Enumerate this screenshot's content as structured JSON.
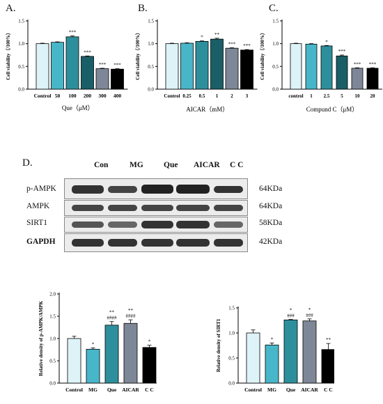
{
  "panel_labels": {
    "a": "A.",
    "b": "B.",
    "c": "C.",
    "d": "D."
  },
  "western_blot": {
    "lanes": [
      "Con",
      "MG",
      "Que",
      "AICAR",
      "C C"
    ],
    "rows": [
      {
        "label": "p-AMPK",
        "kda": "64KDa",
        "bold": false
      },
      {
        "label": "AMPK",
        "kda": "64KDa",
        "bold": false
      },
      {
        "label": "SIRT1",
        "kda": "58KDa",
        "bold": false
      },
      {
        "label": "GAPDH",
        "kda": "42KDa",
        "bold": true
      }
    ]
  },
  "colors": {
    "light_blue": "#ddf3f8",
    "teal": "#48b6c9",
    "mid_teal": "#2e8f9c",
    "dark_teal": "#1a5f67",
    "slate": "#7e8797",
    "black": "#000000"
  },
  "chart_data": [
    {
      "type": "bar",
      "ylabel": "Cell viability（/100%）",
      "xlabel": "Que（μM）",
      "categories": [
        "Control",
        "50",
        "100",
        "200",
        "300",
        "400"
      ],
      "values": [
        1.0,
        1.03,
        1.15,
        0.72,
        0.45,
        0.44
      ],
      "errors": [
        0.01,
        0.01,
        0.02,
        0.01,
        0.01,
        0.01
      ],
      "annotations": [
        "",
        "",
        "***",
        "***",
        "***",
        "***"
      ],
      "colors": [
        "#ddf3f8",
        "#48b6c9",
        "#2e8f9c",
        "#1a5f67",
        "#7e8797",
        "#000000"
      ],
      "ylim": [
        0,
        1.5
      ],
      "yticks": [
        "0.0",
        "0.5",
        "1.0",
        "1.5"
      ]
    },
    {
      "type": "bar",
      "ylabel": "Cell viability（/100%）",
      "xlabel": "AICAR（mM）",
      "categories": [
        "Control",
        "0.25",
        "0.5",
        "1",
        "2",
        "3"
      ],
      "values": [
        1.0,
        1.01,
        1.05,
        1.1,
        0.9,
        0.86
      ],
      "errors": [
        0.01,
        0.01,
        0.01,
        0.02,
        0.01,
        0.01
      ],
      "annotations": [
        "",
        "",
        "*",
        "**",
        "***",
        "***"
      ],
      "colors": [
        "#ddf3f8",
        "#48b6c9",
        "#2e8f9c",
        "#1a5f67",
        "#7e8797",
        "#000000"
      ],
      "ylim": [
        0,
        1.5
      ],
      "yticks": [
        "0.0",
        "0.5",
        "1.0",
        "1.5"
      ]
    },
    {
      "type": "bar",
      "ylabel": "Cell viability（/100%）",
      "xlabel": "Compund C（μM）",
      "categories": [
        "control",
        "1",
        "2.5",
        "5",
        "10",
        "20"
      ],
      "values": [
        1.0,
        0.99,
        0.95,
        0.73,
        0.46,
        0.46
      ],
      "errors": [
        0.01,
        0.01,
        0.01,
        0.02,
        0.01,
        0.01
      ],
      "annotations": [
        "",
        "",
        "*",
        "***",
        "***",
        "***"
      ],
      "colors": [
        "#ddf3f8",
        "#48b6c9",
        "#2e8f9c",
        "#1a5f67",
        "#7e8797",
        "#000000"
      ],
      "ylim": [
        0,
        1.5
      ],
      "yticks": [
        "0.0",
        "0.5",
        "1.0",
        "1.5"
      ]
    },
    {
      "type": "bar",
      "ylabel": "Relative density of p-AMPK/AMPK",
      "xlabel": "",
      "categories": [
        "Control",
        "MG",
        "Que",
        "AICAR",
        "C C"
      ],
      "values": [
        1.0,
        0.76,
        1.3,
        1.34,
        0.8
      ],
      "errors": [
        0.05,
        0.03,
        0.08,
        0.08,
        0.05
      ],
      "annotations": [
        "",
        "*",
        "**\n####",
        "**\n####",
        "*"
      ],
      "colors": [
        "#ddf3f8",
        "#48b6c9",
        "#2e8f9c",
        "#7e8797",
        "#000000"
      ],
      "ylim": [
        0,
        2.0
      ],
      "yticks": [
        "0.0",
        "0.5",
        "1.0",
        "1.5",
        "2.0"
      ]
    },
    {
      "type": "bar",
      "ylabel": "Relative density of SIRT1",
      "xlabel": "",
      "categories": [
        "Control",
        "MG",
        "Que",
        "AICAR",
        "C C"
      ],
      "values": [
        1.0,
        0.76,
        1.26,
        1.24,
        0.67
      ],
      "errors": [
        0.06,
        0.04,
        0.01,
        0.04,
        0.12
      ],
      "annotations": [
        "",
        "*",
        "*\n###",
        "*\n###",
        "**"
      ],
      "colors": [
        "#ddf3f8",
        "#48b6c9",
        "#2e8f9c",
        "#7e8797",
        "#000000"
      ],
      "ylim": [
        0,
        1.5
      ],
      "yticks": [
        "0.0",
        "0.5",
        "1.0",
        "1.5"
      ]
    }
  ]
}
